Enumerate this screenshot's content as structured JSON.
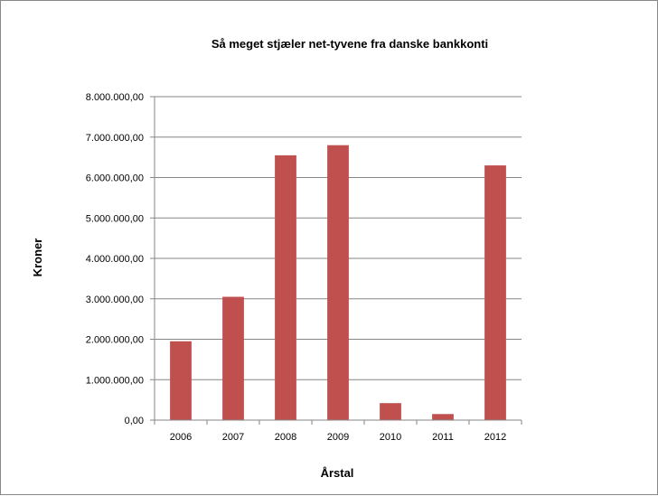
{
  "chart_data": {
    "type": "bar",
    "title": "Så meget stjæler net-tyvene  fra danske bankkonti",
    "xlabel": "Årstal",
    "ylabel": "Kroner",
    "categories": [
      "2006",
      "2007",
      "2008",
      "2009",
      "2010",
      "2011",
      "2012"
    ],
    "values": [
      1950000,
      3050000,
      6550000,
      6800000,
      420000,
      150000,
      6300000
    ],
    "ylim": [
      0,
      8000000
    ],
    "yticks": [
      0,
      1000000,
      2000000,
      3000000,
      4000000,
      5000000,
      6000000,
      7000000,
      8000000
    ],
    "ytick_labels": [
      "0,00",
      "1.000.000,00",
      "2.000.000,00",
      "3.000.000,00",
      "4.000.000,00",
      "5.000.000,00",
      "6.000.000,00",
      "7.000.000,00",
      "8.000.000,00"
    ],
    "grid": true,
    "legend": "none",
    "bar_color": "#C0504D"
  }
}
